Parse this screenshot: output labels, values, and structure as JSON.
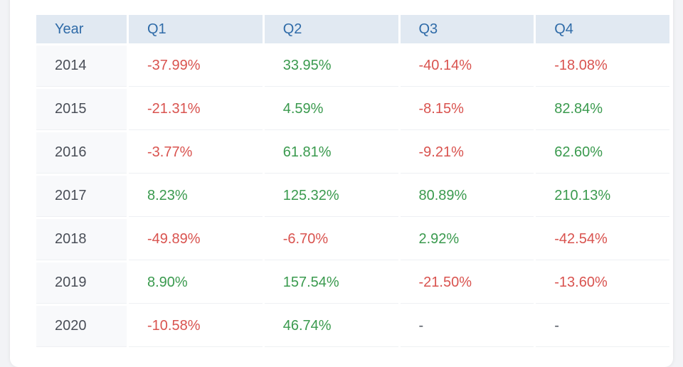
{
  "table": {
    "headers": [
      "Year",
      "Q1",
      "Q2",
      "Q3",
      "Q4"
    ],
    "rows": [
      {
        "year": "2014",
        "cells": [
          "-37.99%",
          "33.95%",
          "-40.14%",
          "-18.08%"
        ]
      },
      {
        "year": "2015",
        "cells": [
          "-21.31%",
          "4.59%",
          "-8.15%",
          "82.84%"
        ]
      },
      {
        "year": "2016",
        "cells": [
          "-3.77%",
          "61.81%",
          "-9.21%",
          "62.60%"
        ]
      },
      {
        "year": "2017",
        "cells": [
          "8.23%",
          "125.32%",
          "80.89%",
          "210.13%"
        ]
      },
      {
        "year": "2018",
        "cells": [
          "-49.89%",
          "-6.70%",
          "2.92%",
          "-42.54%"
        ]
      },
      {
        "year": "2019",
        "cells": [
          "8.90%",
          "157.54%",
          "-21.50%",
          "-13.60%"
        ]
      },
      {
        "year": "2020",
        "cells": [
          "-10.58%",
          "46.74%",
          "-",
          "-"
        ]
      }
    ]
  },
  "colors": {
    "positive": "#3a9a4e",
    "negative": "#d9534f",
    "header_text": "#2f6ba8",
    "header_bg": "#e1e9f2"
  }
}
